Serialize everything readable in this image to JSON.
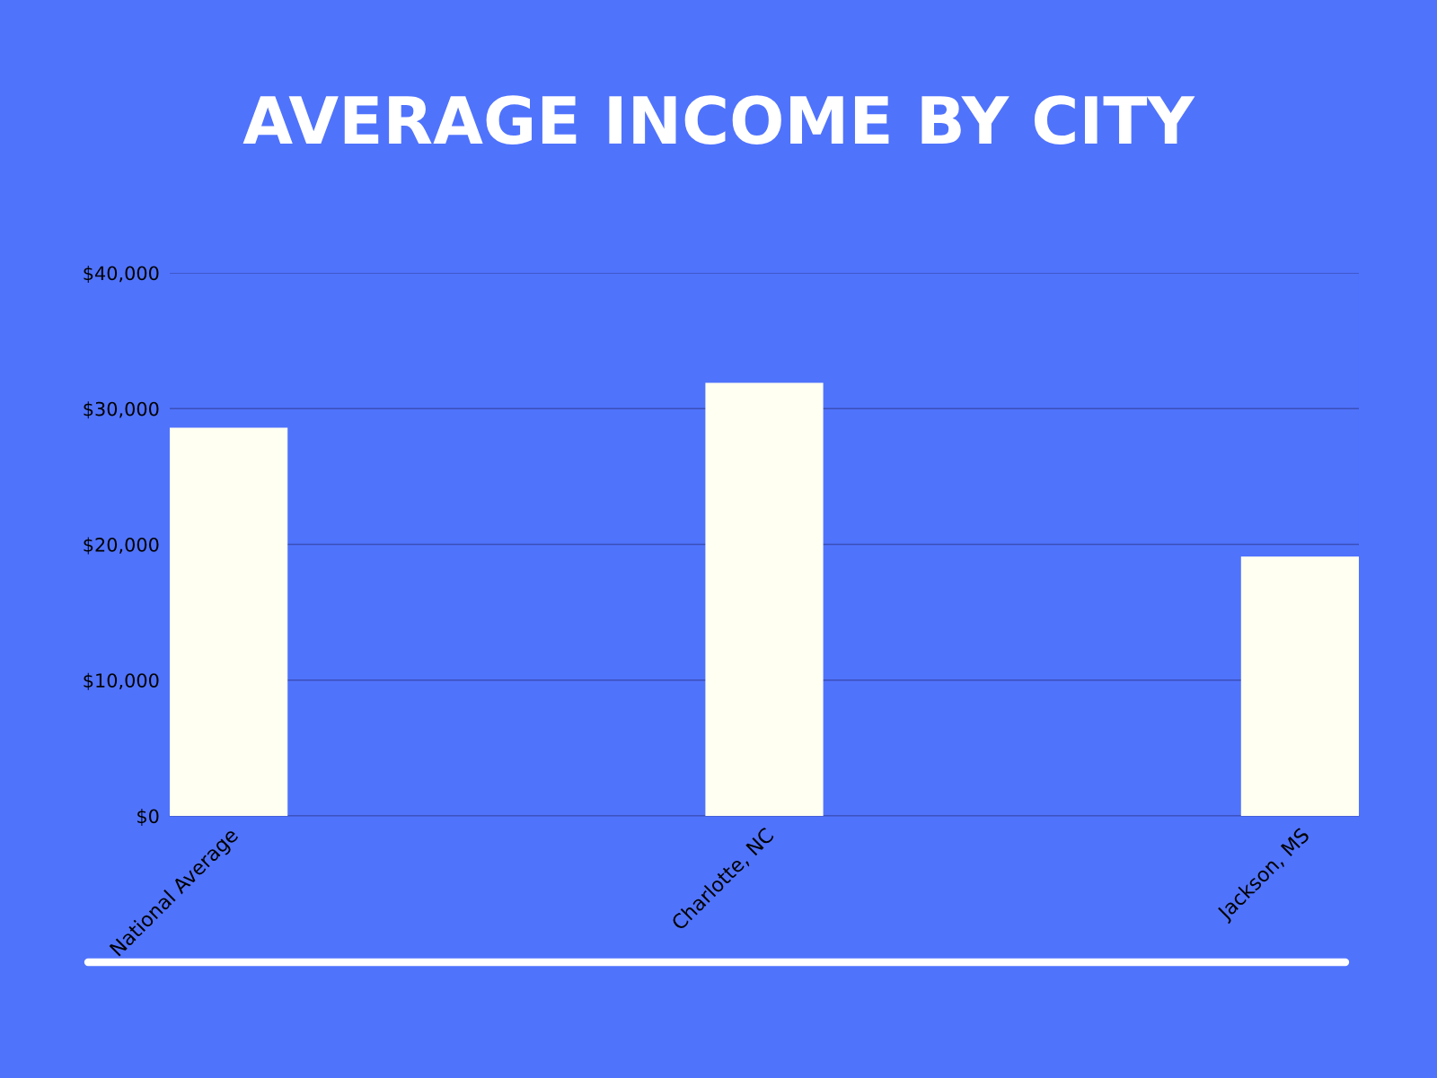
{
  "chart_data": {
    "type": "bar",
    "title": "AVERAGE INCOME BY CITY",
    "categories": [
      "National Average",
      "Charlotte, NC",
      "Jackson, MS"
    ],
    "values": [
      28600,
      31900,
      19100
    ],
    "color": "#fffff2",
    "ylim": [
      0,
      40000
    ],
    "yticks": [
      {
        "value": 0,
        "label": "$0"
      },
      {
        "value": 10000,
        "label": "$10,000"
      },
      {
        "value": 20000,
        "label": "$20,000"
      },
      {
        "value": 30000,
        "label": "$30,000"
      },
      {
        "value": 40000,
        "label": "$40,000"
      }
    ],
    "grid": "y"
  }
}
